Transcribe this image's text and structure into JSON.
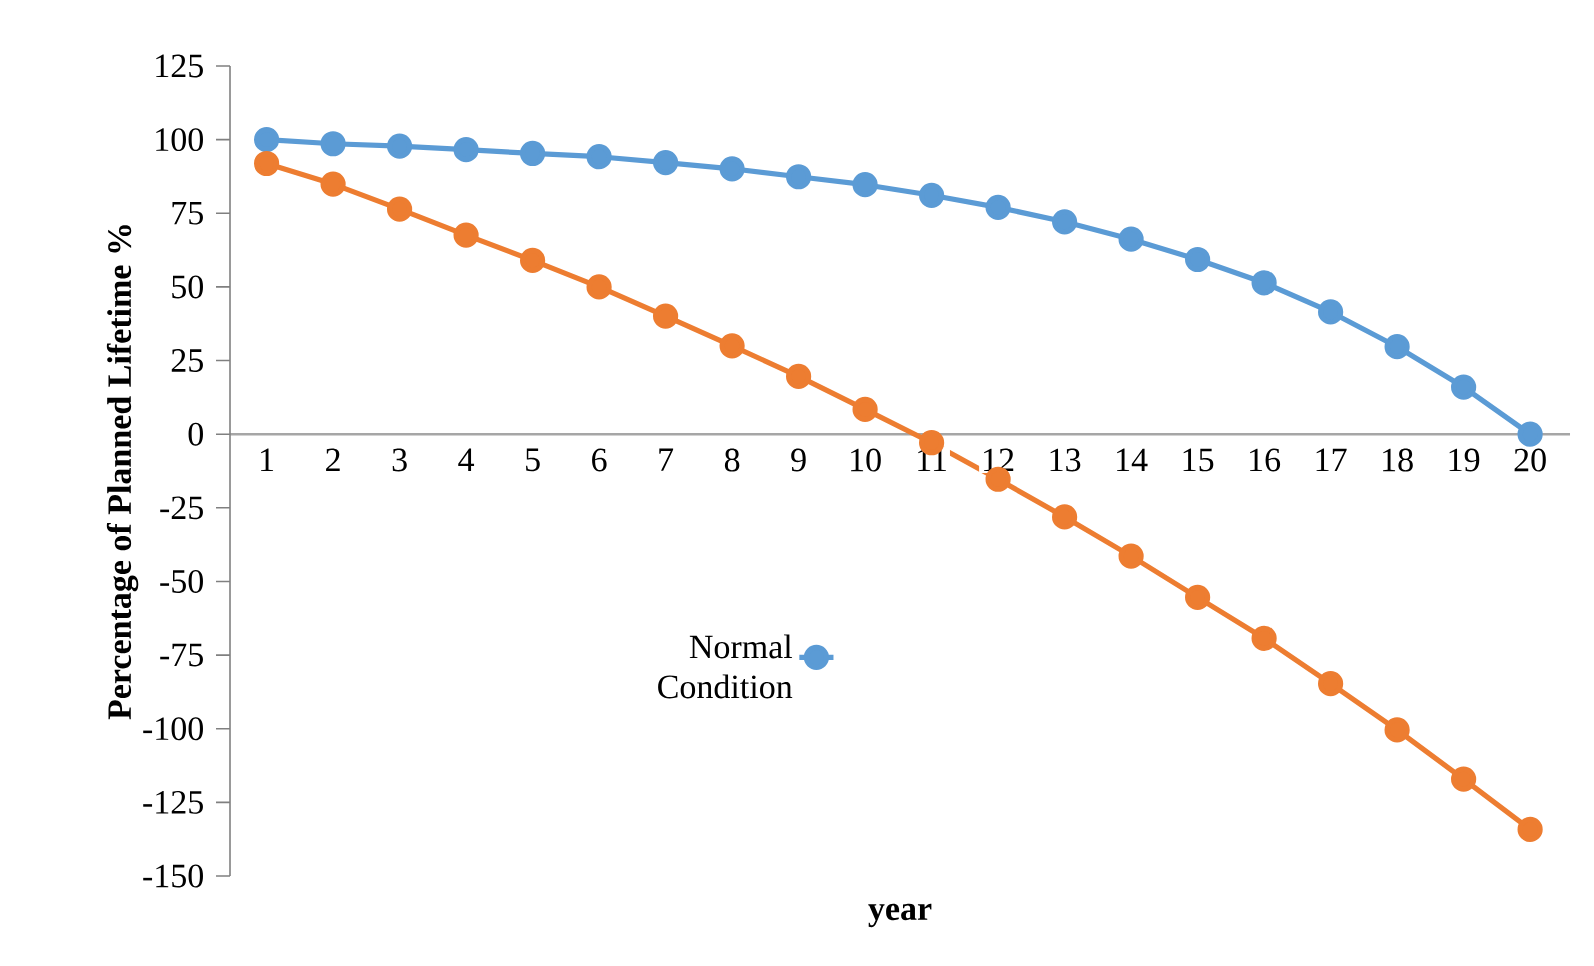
{
  "chart_data": {
    "type": "line",
    "xlabel": "year",
    "ylabel": "Percentage of Planned Lifetime %",
    "categories": [
      "1",
      "2",
      "3",
      "4",
      "5",
      "6",
      "7",
      "8",
      "9",
      "10",
      "11",
      "12",
      "13",
      "14",
      "15",
      "16",
      "17",
      "18",
      "19",
      "20"
    ],
    "series": [
      {
        "name": "Normal Condition",
        "color": "#5b9bd5",
        "values": [
          100,
          98.6,
          97.8,
          96.6,
          95.3,
          94.2,
          92.2,
          90.1,
          87.4,
          84.7,
          81.1,
          77,
          72.1,
          66.2,
          59.3,
          51.4,
          41.5,
          29.7,
          16,
          0
        ]
      },
      {
        "color": "#ed7d31",
        "values": [
          91.9,
          84.9,
          76.4,
          67.6,
          59,
          50,
          40.1,
          30,
          19.6,
          8.4,
          -2.9,
          -15.3,
          -28.1,
          -41.4,
          -55.4,
          -69.3,
          -84.7,
          -100.4,
          -117.1,
          -134.2
        ]
      }
    ],
    "ylim": [
      -150,
      125
    ],
    "yticks": [
      -150,
      -125,
      -100,
      -75,
      -50,
      -25,
      0,
      25,
      50,
      75,
      100,
      125
    ],
    "grid": false,
    "legend": "bottom",
    "marker": "circle",
    "line_style": "solid"
  }
}
